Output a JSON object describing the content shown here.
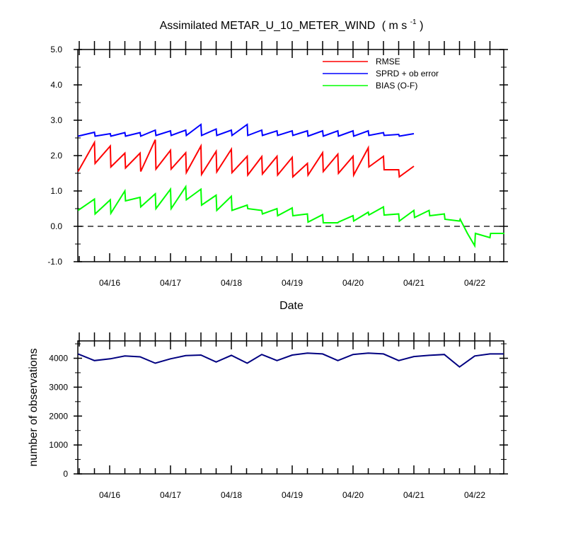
{
  "chart_data": [
    {
      "type": "line",
      "title": "Assimilated METAR_U_10_METER_WIND",
      "title_units_prefix": "( m s",
      "title_units_exp": "-1",
      "title_units_suffix": " )",
      "xlabel": "Date",
      "ylabel": "",
      "x": [
        "04/16",
        "04/17",
        "04/18",
        "04/19",
        "04/20",
        "04/21",
        "04/22"
      ],
      "ylim": [
        -1.0,
        5.0
      ],
      "y_ticks": [
        "5.0",
        "4.0",
        "3.0",
        "2.0",
        "1.0",
        "0.0",
        "-1.0"
      ],
      "legend_placement": "top-right",
      "zero_line": "dashed",
      "series": [
        {
          "name": "RMSE",
          "color": "#ff0000",
          "points": [
            [
              0.0,
              1.55
            ],
            [
              0.27,
              2.37
            ],
            [
              0.28,
              1.78
            ],
            [
              0.53,
              2.27
            ],
            [
              0.54,
              1.68
            ],
            [
              0.77,
              2.07
            ],
            [
              0.78,
              1.65
            ],
            [
              1.02,
              2.07
            ],
            [
              1.03,
              1.55
            ],
            [
              1.27,
              2.45
            ],
            [
              1.28,
              1.62
            ],
            [
              1.52,
              2.15
            ],
            [
              1.53,
              1.62
            ],
            [
              1.77,
              2.08
            ],
            [
              1.78,
              1.52
            ],
            [
              2.02,
              2.27
            ],
            [
              2.03,
              1.47
            ],
            [
              2.27,
              2.12
            ],
            [
              2.28,
              1.54
            ],
            [
              2.52,
              2.18
            ],
            [
              2.53,
              1.52
            ],
            [
              2.78,
              1.98
            ],
            [
              2.79,
              1.45
            ],
            [
              3.02,
              1.97
            ],
            [
              3.03,
              1.48
            ],
            [
              3.27,
              1.98
            ],
            [
              3.28,
              1.45
            ],
            [
              3.52,
              1.95
            ],
            [
              3.53,
              1.4
            ],
            [
              3.77,
              1.78
            ],
            [
              3.78,
              1.45
            ],
            [
              4.02,
              2.08
            ],
            [
              4.03,
              1.55
            ],
            [
              4.27,
              2.04
            ],
            [
              4.28,
              1.5
            ],
            [
              4.52,
              1.98
            ],
            [
              4.53,
              1.45
            ],
            [
              4.77,
              2.22
            ],
            [
              4.78,
              1.68
            ],
            [
              5.02,
              1.98
            ],
            [
              5.03,
              1.6
            ],
            [
              5.27,
              1.6
            ],
            [
              5.28,
              1.4
            ],
            [
              5.52,
              1.7
            ]
          ]
        },
        {
          "name": "SPRD + ob error",
          "color": "#0000ff",
          "points": [
            [
              0.0,
              2.55
            ],
            [
              0.27,
              2.66
            ],
            [
              0.28,
              2.55
            ],
            [
              0.53,
              2.62
            ],
            [
              0.54,
              2.55
            ],
            [
              0.77,
              2.65
            ],
            [
              0.78,
              2.55
            ],
            [
              1.02,
              2.65
            ],
            [
              1.03,
              2.55
            ],
            [
              1.27,
              2.72
            ],
            [
              1.28,
              2.57
            ],
            [
              1.52,
              2.7
            ],
            [
              1.53,
              2.57
            ],
            [
              1.77,
              2.72
            ],
            [
              1.78,
              2.57
            ],
            [
              2.02,
              2.88
            ],
            [
              2.03,
              2.57
            ],
            [
              2.27,
              2.75
            ],
            [
              2.28,
              2.57
            ],
            [
              2.52,
              2.72
            ],
            [
              2.53,
              2.57
            ],
            [
              2.78,
              2.88
            ],
            [
              2.79,
              2.57
            ],
            [
              3.02,
              2.72
            ],
            [
              3.03,
              2.57
            ],
            [
              3.27,
              2.7
            ],
            [
              3.28,
              2.57
            ],
            [
              3.52,
              2.7
            ],
            [
              3.53,
              2.57
            ],
            [
              3.77,
              2.7
            ],
            [
              3.78,
              2.55
            ],
            [
              4.02,
              2.7
            ],
            [
              4.03,
              2.55
            ],
            [
              4.27,
              2.7
            ],
            [
              4.28,
              2.55
            ],
            [
              4.52,
              2.7
            ],
            [
              4.53,
              2.55
            ],
            [
              4.77,
              2.7
            ],
            [
              4.78,
              2.57
            ],
            [
              5.02,
              2.65
            ],
            [
              5.03,
              2.57
            ],
            [
              5.27,
              2.6
            ],
            [
              5.28,
              2.55
            ],
            [
              5.52,
              2.62
            ]
          ]
        },
        {
          "name": "BIAS (O-F)",
          "color": "#00ff00",
          "points": [
            [
              0.0,
              0.45
            ],
            [
              0.27,
              0.77
            ],
            [
              0.28,
              0.35
            ],
            [
              0.53,
              0.75
            ],
            [
              0.54,
              0.37
            ],
            [
              0.77,
              1.0
            ],
            [
              0.78,
              0.72
            ],
            [
              1.02,
              0.82
            ],
            [
              1.03,
              0.55
            ],
            [
              1.27,
              0.92
            ],
            [
              1.28,
              0.5
            ],
            [
              1.52,
              1.05
            ],
            [
              1.53,
              0.5
            ],
            [
              1.77,
              1.12
            ],
            [
              1.78,
              0.75
            ],
            [
              2.02,
              1.05
            ],
            [
              2.03,
              0.6
            ],
            [
              2.27,
              0.88
            ],
            [
              2.28,
              0.45
            ],
            [
              2.52,
              0.85
            ],
            [
              2.53,
              0.45
            ],
            [
              2.78,
              0.6
            ],
            [
              2.79,
              0.5
            ],
            [
              3.02,
              0.45
            ],
            [
              3.03,
              0.35
            ],
            [
              3.27,
              0.5
            ],
            [
              3.28,
              0.3
            ],
            [
              3.52,
              0.52
            ],
            [
              3.53,
              0.3
            ],
            [
              3.77,
              0.35
            ],
            [
              3.78,
              0.12
            ],
            [
              4.02,
              0.33
            ],
            [
              4.03,
              0.1
            ],
            [
              4.27,
              0.1
            ],
            [
              4.28,
              0.12
            ],
            [
              4.52,
              0.3
            ],
            [
              4.53,
              0.15
            ],
            [
              4.77,
              0.4
            ],
            [
              4.78,
              0.32
            ],
            [
              5.02,
              0.55
            ],
            [
              5.03,
              0.32
            ],
            [
              5.27,
              0.35
            ],
            [
              5.28,
              0.15
            ],
            [
              5.52,
              0.45
            ],
            [
              5.53,
              0.25
            ],
            [
              5.77,
              0.45
            ],
            [
              5.78,
              0.3
            ],
            [
              6.02,
              0.35
            ],
            [
              6.03,
              0.2
            ],
            [
              6.27,
              0.15
            ],
            [
              6.28,
              0.2
            ],
            [
              6.4,
              -0.2
            ],
            [
              6.52,
              -0.55
            ],
            [
              6.53,
              -0.2
            ],
            [
              6.77,
              -0.32
            ],
            [
              6.78,
              -0.2
            ],
            [
              7.02,
              -0.2
            ],
            [
              7.03,
              -0.18
            ],
            [
              7.27,
              -0.2
            ]
          ]
        }
      ]
    },
    {
      "type": "line",
      "title": "",
      "xlabel": "",
      "ylabel": "number of observations",
      "x": [
        "04/16",
        "04/17",
        "04/18",
        "04/19",
        "04/20",
        "04/21",
        "04/22"
      ],
      "ylim": [
        0,
        4600
      ],
      "y_ticks": [
        "4000",
        "3000",
        "2000",
        "1000",
        "0"
      ],
      "series": [
        {
          "color": "#000080",
          "points": [
            [
              0.0,
              4150
            ],
            [
              0.27,
              3920
            ],
            [
              0.53,
              3980
            ],
            [
              0.77,
              4080
            ],
            [
              1.02,
              4050
            ],
            [
              1.27,
              3830
            ],
            [
              1.52,
              3980
            ],
            [
              1.77,
              4090
            ],
            [
              2.02,
              4110
            ],
            [
              2.27,
              3870
            ],
            [
              2.52,
              4100
            ],
            [
              2.78,
              3830
            ],
            [
              3.02,
              4130
            ],
            [
              3.27,
              3920
            ],
            [
              3.52,
              4110
            ],
            [
              3.77,
              4180
            ],
            [
              4.02,
              4150
            ],
            [
              4.27,
              3920
            ],
            [
              4.52,
              4130
            ],
            [
              4.77,
              4180
            ],
            [
              5.02,
              4150
            ],
            [
              5.27,
              3920
            ],
            [
              5.52,
              4060
            ],
            [
              5.77,
              4100
            ],
            [
              6.02,
              4130
            ],
            [
              6.27,
              3700
            ],
            [
              6.52,
              4080
            ],
            [
              6.77,
              4150
            ],
            [
              7.02,
              4150
            ]
          ]
        }
      ]
    }
  ]
}
